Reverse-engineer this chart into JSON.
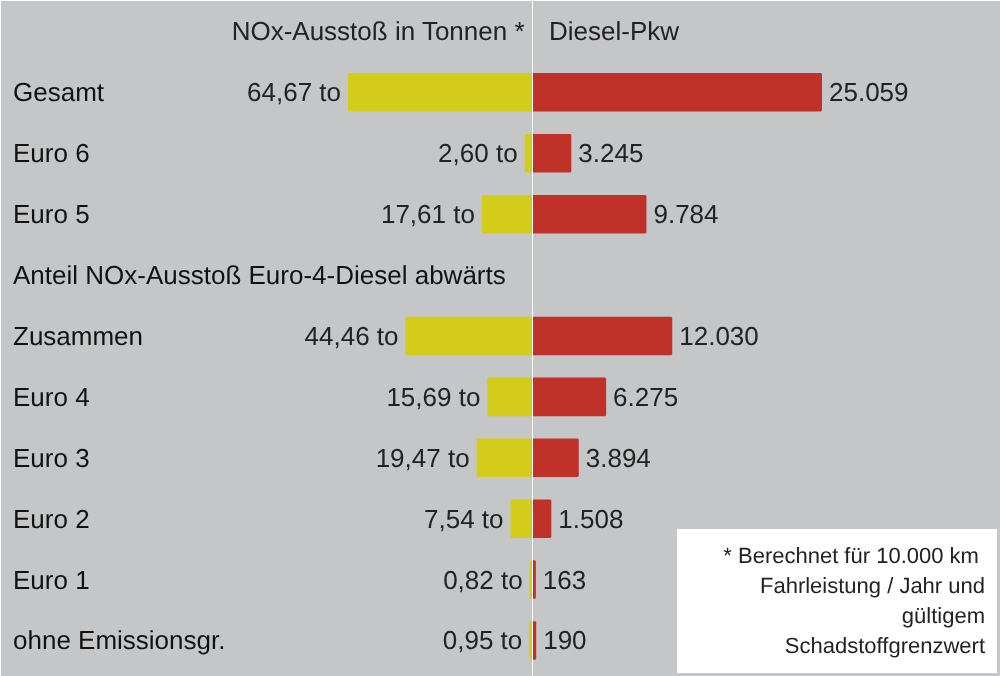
{
  "chart_data": [
    {
      "type": "bar",
      "orientation": "horizontal",
      "title": "NOx-Ausstoß in Tonnen *",
      "categories": [
        "Gesamt",
        "Euro 6",
        "Euro 5",
        "Anteil NOx-Ausstoß Euro-4-Diesel abwärts",
        "Zusammen",
        "Euro 4",
        "Euro 3",
        "Euro 2",
        "Euro 1",
        "ohne Emissionsgr."
      ],
      "series": [
        {
          "color": "#d4cc1a",
          "values": [
            64.67,
            2.6,
            17.61,
            null,
            44.46,
            15.69,
            19.47,
            7.54,
            0.82,
            0.95
          ],
          "value_labels": [
            "64,67 to",
            "2,60 to",
            "17,61 to",
            null,
            "44,46 to",
            "15,69 to",
            "19,47 to",
            "7,54 to",
            "0,82 to",
            "0,95 to"
          ]
        }
      ],
      "grid": false
    },
    {
      "type": "bar",
      "orientation": "horizontal",
      "title": "Diesel-Pkw",
      "categories": [
        null,
        null,
        null,
        null,
        null,
        null,
        null,
        null,
        null,
        null
      ],
      "series": [
        {
          "color": "#c0312a",
          "values": [
            25059,
            3245,
            9784,
            null,
            12030,
            6275,
            3894,
            1508,
            163,
            190
          ],
          "value_labels": [
            "25.059",
            "3.245",
            "9.784",
            null,
            "12.030",
            "6.275",
            "3.894",
            "1.508",
            "163",
            "190"
          ]
        }
      ],
      "grid": false,
      "annotations": [
        "* Berechnet  für 10.000 km\nFahrleistung / Jahr und\ngültigem\nSchadstoffgrenzwert"
      ]
    }
  ]
}
